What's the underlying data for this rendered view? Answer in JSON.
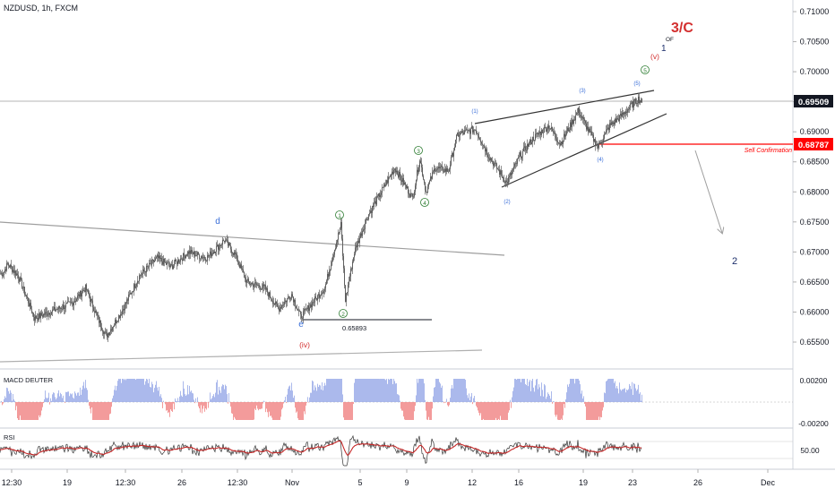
{
  "header": {
    "title": "NZDUSD, 1h, FXCM"
  },
  "colors": {
    "candle": "#5f5f5f",
    "wave_blue": "#3a6fd8",
    "wave_red": "#d32f2f",
    "wave_green": "#2e7d32",
    "navy": "#1c2f6b",
    "sell_line": "#ff0000",
    "rsi_line": "#c62828",
    "macd_pos": "#8fa2e6",
    "macd_neg": "#ef7a7a",
    "axis_text": "#131722"
  },
  "price_axis": {
    "ticks": [
      "0.71000",
      "0.70500",
      "0.70000",
      "0.69500",
      "0.69000",
      "0.68500",
      "0.68000",
      "0.67500",
      "0.67000",
      "0.66500",
      "0.66000",
      "0.65500"
    ],
    "current_price": "0.69509",
    "sell_price": "0.68787"
  },
  "x_axis": {
    "labels": [
      "12:30",
      "19",
      "12:30",
      "26",
      "12:30",
      "Nov",
      "5",
      "9",
      "12",
      "16",
      "19",
      "23",
      "26",
      "Dec"
    ]
  },
  "annotations": {
    "wave_3c": "3/C",
    "of_label": "OF",
    "wave_1": "1",
    "wave_v": "(v)",
    "wave_5_circle": "5",
    "wave_5_paren": "(5)",
    "wave_3_paren": "(3)",
    "wave_1_paren": "(1)",
    "wave_2_paren": "(2)",
    "wave_4_paren": "(4)",
    "wave_3_circle": "3",
    "wave_4_circle": "4",
    "wave_1_circle": "1",
    "wave_2_circle": "2",
    "wave_d": "d",
    "wave_e": "e",
    "wave_iv": "(iv)",
    "low_price": "0.65893",
    "sell_confirmation": "Sell Confirmation",
    "target_2": "2"
  },
  "macd": {
    "title": "MACD DEUTER",
    "ticks": [
      "0.00200",
      "-0.00200"
    ]
  },
  "rsi": {
    "title": "RSI",
    "tick": "50.00"
  },
  "chart_data": {
    "type": "candlestick",
    "title": "NZDUSD, 1h, FXCM",
    "y_range": [
      0.6515,
      0.7115
    ],
    "path_points": [
      [
        0.6665,
        3
      ],
      [
        0.668,
        8
      ],
      [
        0.666,
        20
      ],
      [
        0.659,
        38
      ],
      [
        0.66,
        55
      ],
      [
        0.6615,
        80
      ],
      [
        0.664,
        95
      ],
      [
        0.6585,
        110
      ],
      [
        0.656,
        118
      ],
      [
        0.66,
        135
      ],
      [
        0.666,
        155
      ],
      [
        0.669,
        175
      ],
      [
        0.6675,
        190
      ],
      [
        0.67,
        210
      ],
      [
        0.669,
        230
      ],
      [
        0.672,
        250
      ],
      [
        0.6695,
        262
      ],
      [
        0.665,
        275
      ],
      [
        0.664,
        295
      ],
      [
        0.6605,
        310
      ],
      [
        0.663,
        325
      ],
      [
        0.6592,
        335
      ],
      [
        0.6615,
        348
      ],
      [
        0.664,
        362
      ],
      [
        0.67,
        372
      ],
      [
        0.6745,
        380
      ],
      [
        0.662,
        385
      ],
      [
        0.67,
        395
      ],
      [
        0.676,
        410
      ],
      [
        0.68,
        425
      ],
      [
        0.684,
        440
      ],
      [
        0.679,
        460
      ],
      [
        0.6855,
        468
      ],
      [
        0.68,
        475
      ],
      [
        0.684,
        485
      ],
      [
        0.6835,
        500
      ],
      [
        0.6895,
        510
      ],
      [
        0.6905,
        530
      ],
      [
        0.686,
        545
      ],
      [
        0.6815,
        565
      ],
      [
        0.686,
        580
      ],
      [
        0.689,
        595
      ],
      [
        0.691,
        612
      ],
      [
        0.688,
        625
      ],
      [
        0.6935,
        645
      ],
      [
        0.69,
        657
      ],
      [
        0.6875,
        667
      ],
      [
        0.691,
        680
      ],
      [
        0.6925,
        692
      ],
      [
        0.6945,
        705
      ],
      [
        0.6955,
        712
      ],
      [
        0.695,
        716
      ]
    ]
  }
}
